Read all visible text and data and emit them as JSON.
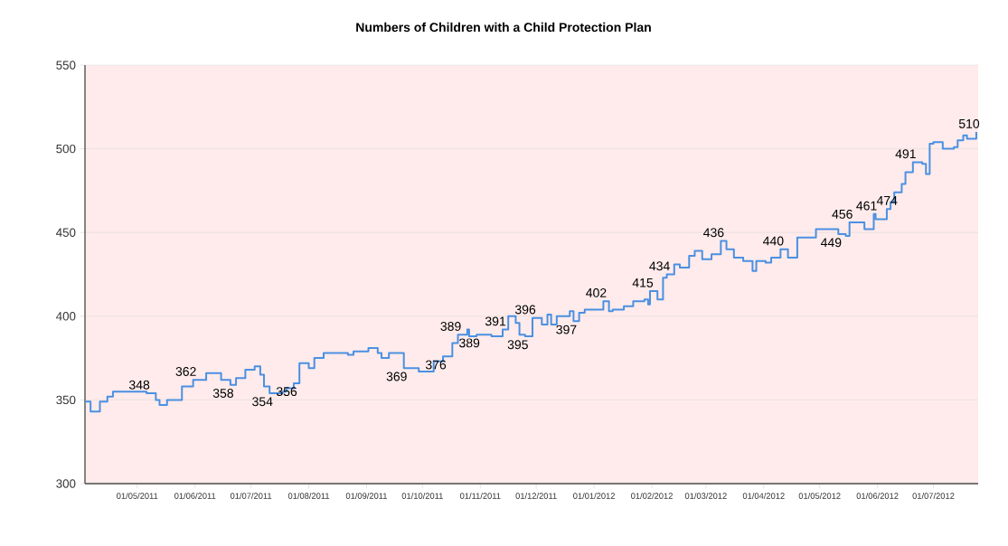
{
  "chart_data": {
    "type": "step",
    "title": "Numbers of Children with a Child Protection Plan",
    "x": [
      "2011-04-03",
      "2011-04-06",
      "2011-04-11",
      "2011-04-15",
      "2011-04-18",
      "2011-05-06",
      "2011-05-11",
      "2011-05-13",
      "2011-05-17",
      "2011-05-25",
      "2011-05-31",
      "2011-06-07",
      "2011-06-15",
      "2011-06-20",
      "2011-06-23",
      "2011-06-28",
      "2011-07-03",
      "2011-07-06",
      "2011-07-08",
      "2011-07-11",
      "2011-07-18",
      "2011-07-20",
      "2011-07-24",
      "2011-07-27",
      "2011-08-01",
      "2011-08-04",
      "2011-08-09",
      "2011-08-22",
      "2011-08-25",
      "2011-09-02",
      "2011-09-07",
      "2011-09-09",
      "2011-09-13",
      "2011-09-21",
      "2011-09-27",
      "2011-09-29",
      "2011-10-06",
      "2011-10-07",
      "2011-10-12",
      "2011-10-17",
      "2011-10-20",
      "2011-10-25",
      "2011-10-26",
      "2011-10-30",
      "2011-11-07",
      "2011-11-13",
      "2011-11-16",
      "2011-11-20",
      "2011-11-22",
      "2011-11-25",
      "2011-11-29",
      "2011-12-04",
      "2011-12-07",
      "2011-12-09",
      "2011-12-12",
      "2011-12-19",
      "2011-12-21",
      "2011-12-24",
      "2011-12-27",
      "2012-01-04",
      "2012-01-06",
      "2012-01-09",
      "2012-01-11",
      "2012-01-17",
      "2012-01-22",
      "2012-01-28",
      "2012-01-30",
      "2012-01-31",
      "2012-02-04",
      "2012-02-07",
      "2012-02-09",
      "2012-02-13",
      "2012-02-16",
      "2012-02-21",
      "2012-02-24",
      "2012-02-28",
      "2012-03-04",
      "2012-03-09",
      "2012-03-12",
      "2012-03-16",
      "2012-03-21",
      "2012-03-26",
      "2012-03-28",
      "2012-04-02",
      "2012-04-05",
      "2012-04-10",
      "2012-04-14",
      "2012-04-19",
      "2012-04-24",
      "2012-04-29",
      "2012-05-09",
      "2012-05-11",
      "2012-05-15",
      "2012-05-17",
      "2012-05-23",
      "2012-05-25",
      "2012-05-30",
      "2012-05-31",
      "2012-06-04",
      "2012-06-06",
      "2012-06-08",
      "2012-06-10",
      "2012-06-14",
      "2012-06-16",
      "2012-06-20",
      "2012-06-25",
      "2012-06-27",
      "2012-06-29",
      "2012-07-01",
      "2012-07-06",
      "2012-07-12",
      "2012-07-14",
      "2012-07-17",
      "2012-07-19",
      "2012-07-24"
    ],
    "series": [
      {
        "color": "#4a90e2",
        "values": [
          349,
          343,
          349,
          352,
          355,
          354,
          350,
          347,
          350,
          358,
          362,
          366,
          362,
          359,
          363,
          368,
          370,
          365,
          358,
          354,
          355,
          357,
          360,
          372,
          369,
          375,
          378,
          377,
          379,
          381,
          378,
          375,
          378,
          369,
          369,
          367,
          367,
          373,
          376,
          384,
          389,
          392,
          388,
          389,
          388,
          392,
          400,
          396,
          389,
          388,
          399,
          395,
          401,
          395,
          400,
          403,
          397,
          402,
          404,
          404,
          409,
          403,
          404,
          406,
          409,
          410,
          407,
          415,
          410,
          423,
          425,
          431,
          429,
          436,
          439,
          434,
          437,
          445,
          440,
          435,
          433,
          427,
          433,
          432,
          435,
          440,
          435,
          447,
          447,
          452,
          452,
          449,
          448,
          456,
          456,
          452,
          461,
          458,
          458,
          464,
          468,
          474,
          479,
          486,
          492,
          491,
          485,
          503,
          504,
          500,
          501,
          505,
          508,
          506,
          510
        ]
      }
    ],
    "xlim": [
      "2011-04-03",
      "2012-07-25"
    ],
    "xticks": [
      {
        "value": "2011-05-01",
        "label": "01/05/2011"
      },
      {
        "value": "2011-06-01",
        "label": "01/06/2011"
      },
      {
        "value": "2011-07-01",
        "label": "01/07/2011"
      },
      {
        "value": "2011-08-01",
        "label": "01/08/2011"
      },
      {
        "value": "2011-09-01",
        "label": "01/09/2011"
      },
      {
        "value": "2011-10-01",
        "label": "01/10/2011"
      },
      {
        "value": "2011-11-01",
        "label": "01/11/2011"
      },
      {
        "value": "2011-12-01",
        "label": "01/12/2011"
      },
      {
        "value": "2012-01-01",
        "label": "01/01/2012"
      },
      {
        "value": "2012-02-01",
        "label": "01/02/2012"
      },
      {
        "value": "2012-03-01",
        "label": "01/03/2012"
      },
      {
        "value": "2012-04-01",
        "label": "01/04/2012"
      },
      {
        "value": "2012-05-01",
        "label": "01/05/2012"
      },
      {
        "value": "2012-06-01",
        "label": "01/06/2012"
      },
      {
        "value": "2012-07-01",
        "label": "01/07/2012"
      }
    ],
    "ylim": [
      300,
      550
    ],
    "yticks": [
      300,
      350,
      400,
      450,
      500,
      550
    ],
    "grid": "y",
    "annotations": [
      {
        "text": "348",
        "x": "2011-05-06",
        "y": 354
      },
      {
        "text": "362",
        "x": "2011-05-31",
        "y": 362
      },
      {
        "text": "358",
        "x": "2011-06-20",
        "y": 359
      },
      {
        "text": "354",
        "x": "2011-07-11",
        "y": 354
      },
      {
        "text": "356",
        "x": "2011-07-24",
        "y": 360
      },
      {
        "text": "369",
        "x": "2011-09-21",
        "y": 369
      },
      {
        "text": "376",
        "x": "2011-10-12",
        "y": 376
      },
      {
        "text": "389",
        "x": "2011-10-20",
        "y": 389
      },
      {
        "text": "389",
        "x": "2011-10-30",
        "y": 389
      },
      {
        "text": "391",
        "x": "2011-11-13",
        "y": 392
      },
      {
        "text": "395",
        "x": "2011-11-25",
        "y": 388
      },
      {
        "text": "396",
        "x": "2011-11-29",
        "y": 399
      },
      {
        "text": "397",
        "x": "2011-12-21",
        "y": 397
      },
      {
        "text": "402",
        "x": "2012-01-06",
        "y": 409
      },
      {
        "text": "415",
        "x": "2012-01-31",
        "y": 415
      },
      {
        "text": "434",
        "x": "2012-02-09",
        "y": 425
      },
      {
        "text": "436",
        "x": "2012-03-09",
        "y": 445
      },
      {
        "text": "440",
        "x": "2012-04-10",
        "y": 440
      },
      {
        "text": "449",
        "x": "2012-05-11",
        "y": 449
      },
      {
        "text": "456",
        "x": "2012-05-17",
        "y": 456
      },
      {
        "text": "461",
        "x": "2012-05-30",
        "y": 461
      },
      {
        "text": "474",
        "x": "2012-06-10",
        "y": 474
      },
      {
        "text": "491",
        "x": "2012-06-20",
        "y": 492
      },
      {
        "text": "510",
        "x": "2012-07-24",
        "y": 510
      }
    ]
  }
}
